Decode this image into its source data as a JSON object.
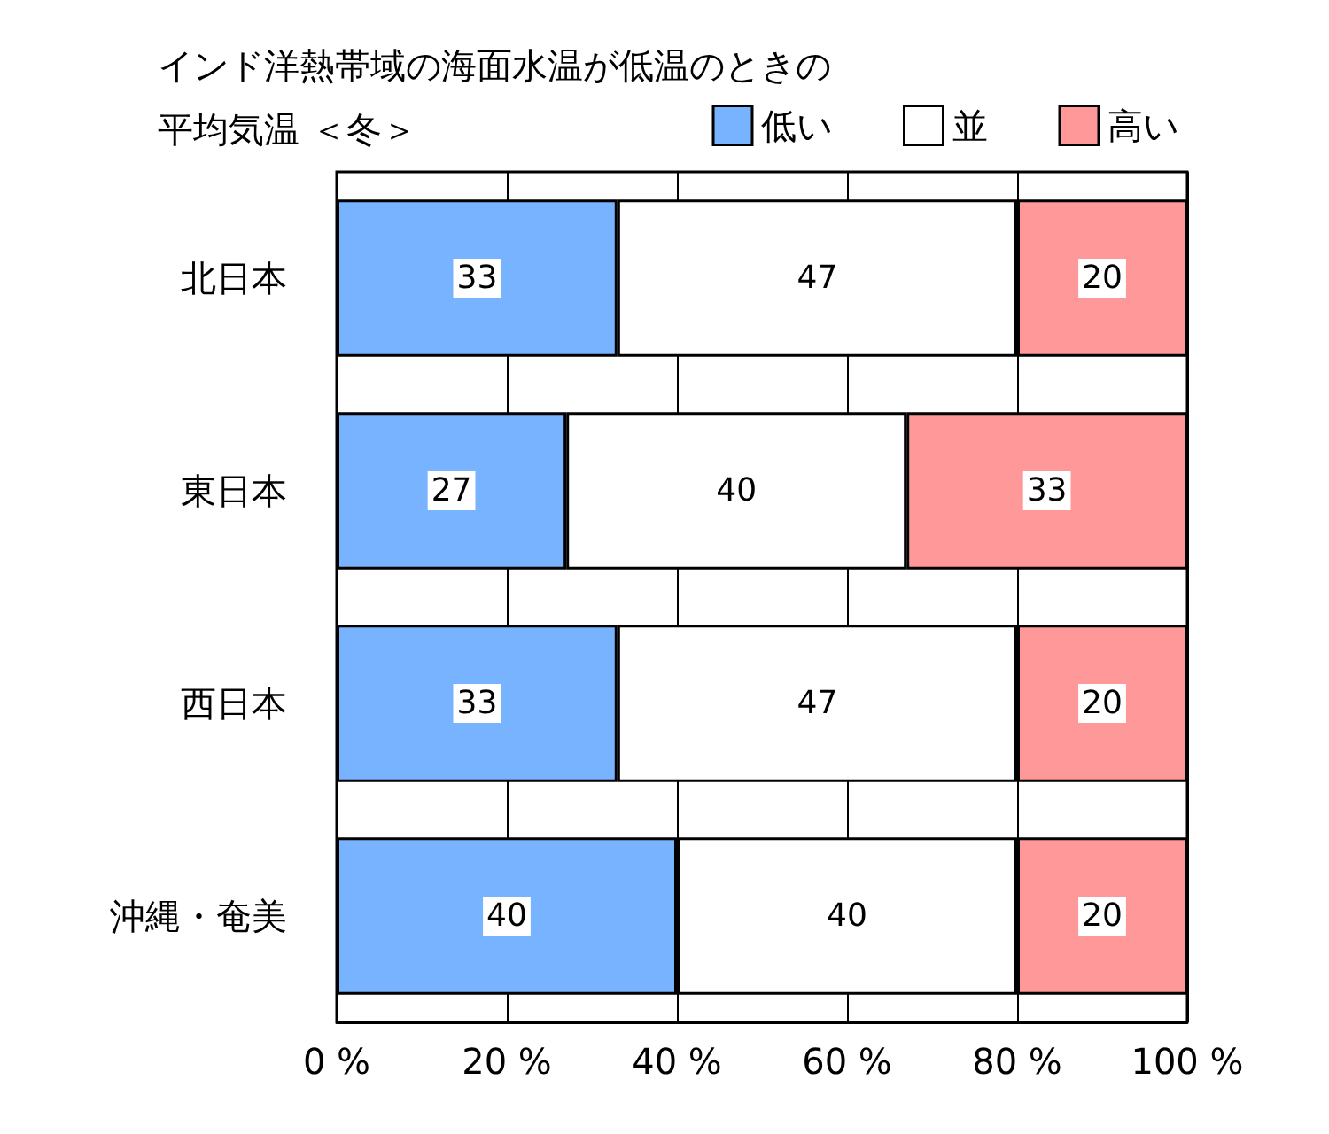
{
  "chart_data": {
    "type": "bar",
    "orientation": "horizontal",
    "stacked": true,
    "title": "インド洋熱帯域の海面水温が低温のときの平均気温 ＜冬＞",
    "categories": [
      "北日本",
      "東日本",
      "西日本",
      "沖縄・奄美"
    ],
    "series": [
      {
        "name": "低い",
        "color": "#77b3ff",
        "values": [
          33,
          27,
          33,
          40
        ]
      },
      {
        "name": "並",
        "color": "#ffffff",
        "values": [
          47,
          40,
          47,
          40
        ]
      },
      {
        "name": "高い",
        "color": "#ff9999",
        "values": [
          20,
          33,
          20,
          20
        ]
      }
    ],
    "xlim": [
      0,
      100
    ],
    "xticks": [
      {
        "value": 0,
        "label": "0 %"
      },
      {
        "value": 20,
        "label": "20 %"
      },
      {
        "value": 40,
        "label": "40 %"
      },
      {
        "value": 60,
        "label": "60 %"
      },
      {
        "value": 80,
        "label": "80 %"
      },
      {
        "value": 100,
        "label": "100 %"
      }
    ],
    "grid": "x",
    "legend": "top right",
    "data_labels": true
  }
}
